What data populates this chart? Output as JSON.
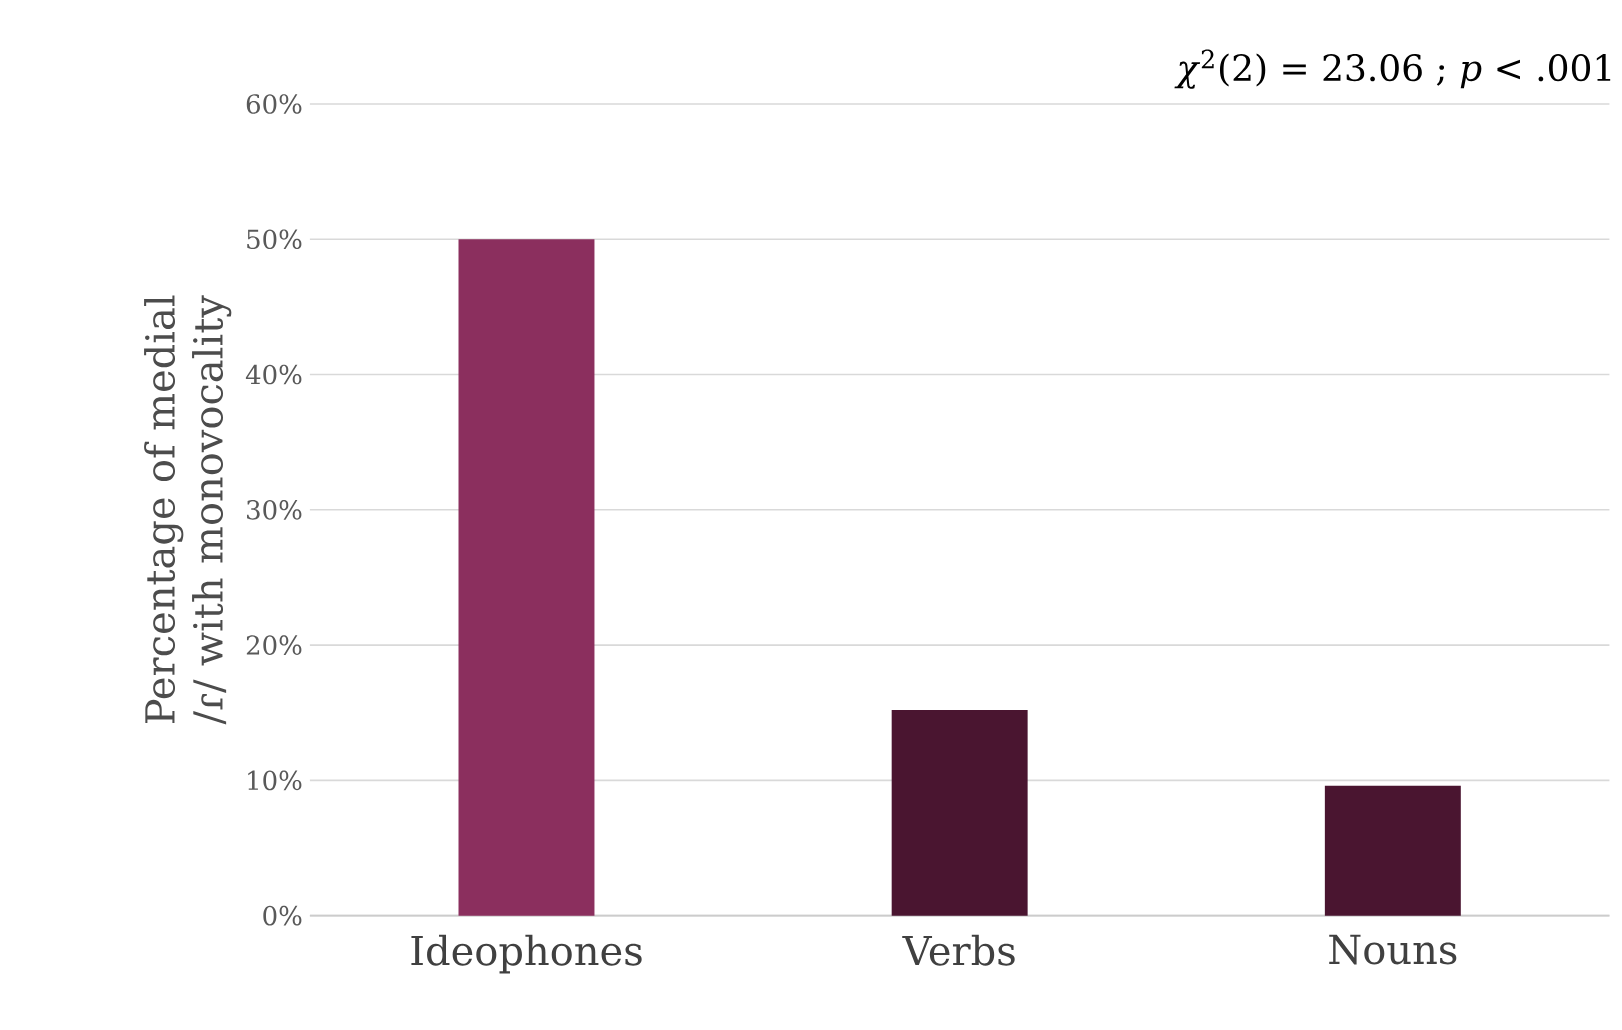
{
  "chart_data": {
    "type": "bar",
    "ylabel": "Percentage of medial /ɾ/ with monovocality",
    "categories": [
      "Ideophones",
      "Verbs",
      "Nouns"
    ],
    "values": [
      50,
      15.2,
      9.6
    ],
    "colors": [
      "#8b2f5e",
      "#4a1530",
      "#4a1530"
    ],
    "ylim": [
      0,
      60
    ],
    "yticks": [
      {
        "value": 0,
        "label": "0%"
      },
      {
        "value": 10,
        "label": "10%"
      },
      {
        "value": 20,
        "label": "20%"
      },
      {
        "value": 30,
        "label": "30%"
      },
      {
        "value": 40,
        "label": "40%"
      },
      {
        "value": 50,
        "label": "50%"
      },
      {
        "value": 60,
        "label": "60%"
      }
    ],
    "grid": "y",
    "annotations": [
      "*χ*$^{2}$(2) = 23.06 ; *p* < .001"
    ]
  }
}
